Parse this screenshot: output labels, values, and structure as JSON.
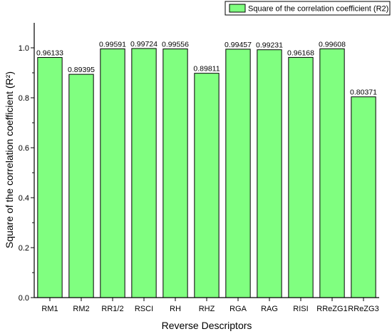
{
  "chart_data": {
    "type": "bar",
    "categories": [
      "RM1",
      "RM2",
      "RR1/2",
      "RSCI",
      "RH",
      "RHZ",
      "RGA",
      "RAG",
      "RISI",
      "RReZG1",
      "RReZG3"
    ],
    "series": [
      {
        "name": "Square of the correlation coefficient (R2)",
        "values": [
          0.96133,
          0.89395,
          0.99591,
          0.99724,
          0.99556,
          0.89811,
          0.99457,
          0.99231,
          0.96168,
          0.99608,
          0.80371
        ]
      }
    ],
    "data_labels": [
      "0.96133",
      "0.89395",
      "0.99591",
      "0.99724",
      "0.99556",
      "0.89811",
      "0.99457",
      "0.99231",
      "0.96168",
      "0.99608",
      "0.80371"
    ],
    "xlabel": "Reverse Descriptors",
    "ylabel": "Square of the correlation coefficient (R²)",
    "ylim": [
      0,
      1.1
    ],
    "yticks": [
      "0.0",
      "0.2",
      "0.4",
      "0.6",
      "0.8",
      "1.0"
    ],
    "legend": {
      "label": "Square of the correlation coefficient (R2)",
      "position": "top-right"
    },
    "grid": false,
    "colors": {
      "bar_fill": "#80ff80",
      "bar_stroke": "#000000",
      "axis": "#000000"
    }
  }
}
